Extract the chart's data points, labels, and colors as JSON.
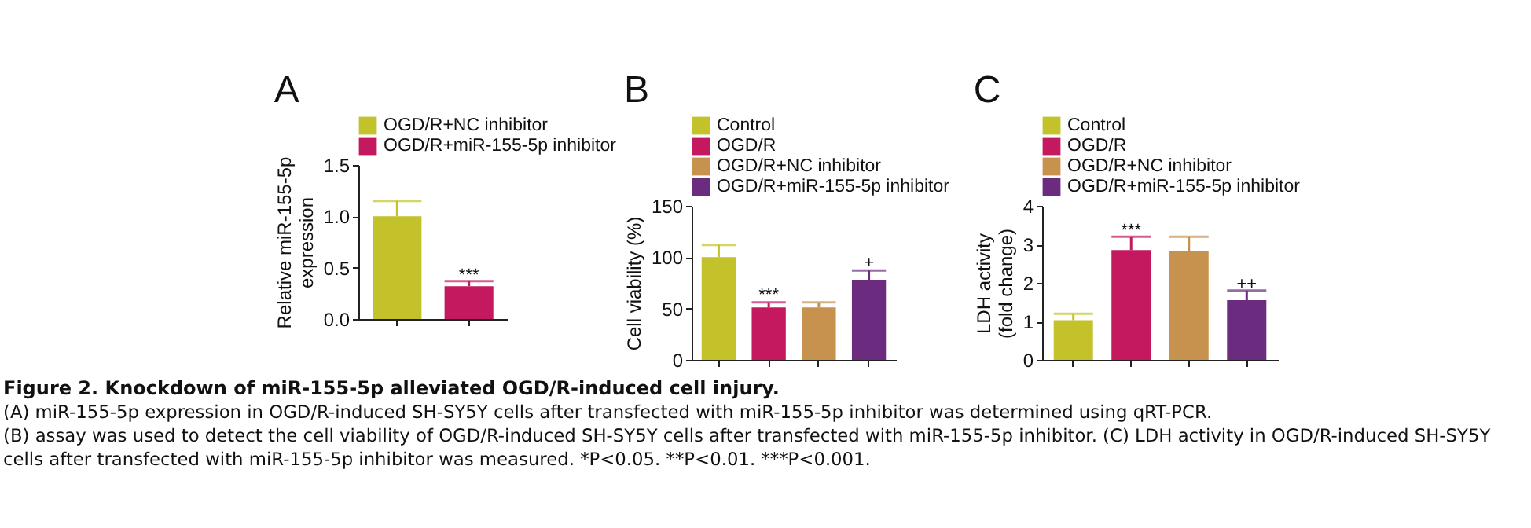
{
  "chart_data": [
    {
      "type": "bar",
      "title": "A",
      "ylabel": "Relative miR-155-5p expression",
      "categories": [
        null,
        null
      ],
      "ylim": [
        0,
        1.5
      ],
      "yticks": [
        {
          "value": 0,
          "label": "0.0"
        },
        {
          "value": 0.5,
          "label": "0.5"
        },
        {
          "value": 1,
          "label": "1.0"
        },
        {
          "value": 1.5,
          "label": "1.5"
        }
      ],
      "legend": "top",
      "tick_labels": "y",
      "series": [
        {
          "name": "OGD/R+NC inhibitor",
          "color": "#c3c22a",
          "values": [
            1.0,
            null
          ],
          "errors": [
            [
              1.0,
              1.15
            ],
            null
          ]
        },
        {
          "name": "OGD/R+miR-155-5p inhibitor",
          "color": "#c4185f",
          "values": [
            null,
            0.32
          ],
          "errors": [
            null,
            [
              0.32,
              0.37
            ]
          ]
        }
      ],
      "annotations": [
        {
          "text": "***",
          "y": 0.42
        }
      ]
    },
    {
      "type": "bar",
      "title": "B",
      "ylabel": "Cell viability (%)",
      "categories": [
        null,
        null,
        null,
        null
      ],
      "ylim": [
        0,
        150
      ],
      "yticks": [
        0,
        50,
        100,
        150
      ],
      "legend": "top",
      "tick_labels": "y",
      "series": [
        {
          "name": "Control",
          "color": "#c3c22a",
          "values": [
            100,
            null,
            null,
            null
          ],
          "errors": [
            [
              100,
              112
            ],
            null,
            null,
            null
          ]
        },
        {
          "name": "OGD/R",
          "color": "#c4185f",
          "values": [
            null,
            51,
            null,
            null
          ],
          "errors": [
            null,
            [
              51,
              56
            ],
            null,
            null
          ]
        },
        {
          "name": "OGD/R+NC inhibitor",
          "color": "#c6924e",
          "values": [
            null,
            null,
            51,
            null
          ],
          "errors": [
            null,
            null,
            [
              51,
              56
            ],
            null
          ]
        },
        {
          "name": "OGD/R+miR-155-5p inhibitor",
          "color": "#6b2c80",
          "values": [
            null,
            null,
            null,
            78
          ],
          "errors": [
            null,
            null,
            null,
            [
              78,
              87
            ]
          ]
        }
      ],
      "annotations": [
        {
          "text": "***",
          "y": 63
        },
        {
          "text": "+",
          "y": 94
        }
      ]
    },
    {
      "type": "bar",
      "title": "C",
      "ylabel": "LDH activity (fold change)",
      "categories": [
        null,
        null,
        null,
        null
      ],
      "ylim": [
        0,
        4
      ],
      "yticks": [
        0,
        1,
        2,
        3,
        4
      ],
      "legend": "top",
      "tick_labels": "y",
      "series": [
        {
          "name": "Control",
          "color": "#c3c22a",
          "values": [
            1.03,
            null,
            null,
            null
          ],
          "errors": [
            [
              1.03,
              1.2
            ],
            null,
            null,
            null
          ]
        },
        {
          "name": "OGD/R",
          "color": "#c4185f",
          "values": [
            null,
            2.85,
            null,
            null
          ],
          "errors": [
            null,
            [
              2.85,
              3.2
            ],
            null,
            null
          ]
        },
        {
          "name": "OGD/R+NC inhibitor",
          "color": "#c6924e",
          "values": [
            null,
            null,
            2.82,
            null
          ],
          "errors": [
            null,
            null,
            [
              2.82,
              3.2
            ],
            null
          ]
        },
        {
          "name": "OGD/R+miR-155-5p inhibitor",
          "color": "#6b2c80",
          "values": [
            null,
            null,
            null,
            1.55
          ],
          "errors": [
            null,
            null,
            null,
            [
              1.55,
              1.8
            ]
          ]
        }
      ],
      "annotations": [
        {
          "text": "***",
          "y": 3.35
        },
        {
          "text": "++",
          "y": 1.95
        }
      ]
    },
    {
      "type": "other",
      "title": "Figure 2. Knockdown of miR-155-5p alleviated OGD/R-induced cell injury.",
      "annotations": [
        "(A) miR-155-5p expression in OGD/R-induced SH-SY5Y cells after transfected with miR-155-5p inhibitor was determined using qRT-PCR.",
        "(B) assay was used to detect the cell viability of OGD/R-induced SH-SY5Y cells after transfected with miR-155-5p inhibitor. (C) LDH activity in OGD/R-induced SH-SY5Y cells after transfected with miR-155-5p inhibitor was measured. *P<0.05. **P<0.01. ***P<0.001."
      ]
    }
  ]
}
